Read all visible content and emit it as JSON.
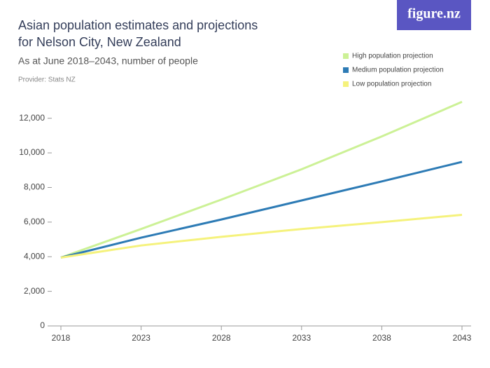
{
  "logo": "figure.nz",
  "chart_data": {
    "type": "line",
    "title": "Asian population estimates and projections for Nelson City, New Zealand",
    "subtitle": "As at June 2018–2043, number of people",
    "provider": "Provider: Stats NZ",
    "x": [
      2018,
      2023,
      2028,
      2033,
      2038,
      2043
    ],
    "series": [
      {
        "name": "High population projection",
        "color": "#ccf196",
        "values": [
          3950,
          5600,
          7300,
          9050,
          10950,
          12950
        ]
      },
      {
        "name": "Medium population projection",
        "color": "#2d7bb5",
        "values": [
          3950,
          5100,
          6150,
          7250,
          8350,
          9480
        ]
      },
      {
        "name": "Low population projection",
        "color": "#f5f27c",
        "values": [
          3950,
          4650,
          5150,
          5600,
          6000,
          6420
        ]
      }
    ],
    "xlim": [
      2018,
      2043
    ],
    "xticks": [
      2018,
      2023,
      2028,
      2033,
      2038,
      2043
    ],
    "ylim": [
      0,
      13000
    ],
    "yticks": [
      0,
      {
        "value": 2000,
        "label": "2,000"
      },
      {
        "value": 4000,
        "label": "4,000"
      },
      {
        "value": 6000,
        "label": "6,000"
      },
      {
        "value": 8000,
        "label": "8,000"
      },
      {
        "value": 10000,
        "label": "10,000"
      },
      {
        "value": 12000,
        "label": "12,000"
      }
    ],
    "legend": "top-right"
  }
}
